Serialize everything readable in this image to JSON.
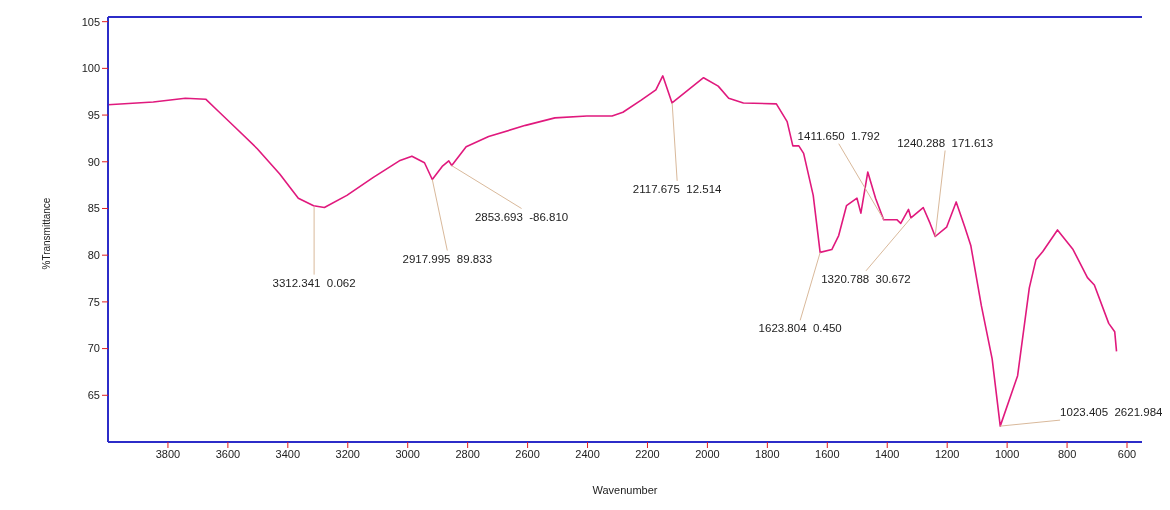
{
  "chart_data": {
    "type": "line",
    "xlabel": "Wavenumber",
    "ylabel": "%Transmittance",
    "xlim": [
      4000,
      550
    ],
    "xticks": [
      3800,
      3600,
      3400,
      3200,
      3000,
      2800,
      2600,
      2400,
      2200,
      2000,
      1800,
      1600,
      1400,
      1200,
      1000,
      800,
      600
    ],
    "ylim": [
      60,
      105.5
    ],
    "yticks": [
      65,
      70,
      75,
      80,
      85,
      90,
      95,
      100,
      105
    ],
    "marker": "none",
    "line_style": "solid",
    "series": [
      {
        "color": "#e0197d",
        "x": [
          4000,
          3849,
          3742,
          3674,
          3638,
          3576,
          3502,
          3427,
          3365,
          3314,
          3278,
          3203,
          3116,
          3028,
          2986,
          2944,
          2918,
          2885,
          2863,
          2853,
          2805,
          2730,
          2607,
          2509,
          2402,
          2318,
          2282,
          2221,
          2172,
          2149,
          2118,
          2013,
          1964,
          1929,
          1880,
          1770,
          1734,
          1715,
          1695,
          1679,
          1647,
          1624,
          1585,
          1562,
          1536,
          1501,
          1488,
          1465,
          1439,
          1412,
          1368,
          1355,
          1329,
          1321,
          1280,
          1257,
          1240,
          1202,
          1170,
          1141,
          1121,
          1086,
          1050,
          1023,
          965,
          926,
          904,
          881,
          832,
          780,
          732,
          709,
          661,
          641,
          635
        ],
        "values": [
          96.1,
          96.4,
          96.8,
          96.7,
          95.6,
          93.7,
          91.4,
          88.7,
          86.1,
          85.3,
          85.1,
          86.4,
          88.3,
          90.1,
          90.6,
          89.9,
          88.1,
          89.5,
          90.1,
          89.6,
          91.6,
          92.7,
          93.9,
          94.7,
          94.9,
          94.9,
          95.3,
          96.6,
          97.7,
          99.2,
          96.3,
          99.0,
          98.1,
          96.8,
          96.3,
          96.2,
          94.3,
          91.7,
          91.7,
          90.9,
          86.4,
          80.3,
          80.6,
          82.1,
          85.3,
          86.1,
          84.5,
          88.9,
          86.1,
          83.8,
          83.8,
          83.4,
          84.9,
          84.0,
          85.1,
          83.4,
          82.0,
          83.0,
          85.7,
          83.0,
          81.0,
          74.6,
          68.9,
          61.7,
          67.1,
          76.5,
          79.5,
          80.4,
          82.7,
          80.6,
          77.6,
          76.8,
          72.7,
          71.8,
          69.7
        ]
      }
    ],
    "annotations": [
      {
        "text": "3312.341  0.062",
        "x": 3312.341,
        "y": 85.2
      },
      {
        "text": "2917.995  89.833",
        "x": 2917.995,
        "y": 88.1
      },
      {
        "text": "2853.693  -86.810",
        "x": 2853.693,
        "y": 89.6
      },
      {
        "text": "2117.675  12.514",
        "x": 2117.675,
        "y": 96.3
      },
      {
        "text": "1623.804  0.450",
        "x": 1623.804,
        "y": 80.3
      },
      {
        "text": "1411.650  1.792",
        "x": 1411.65,
        "y": 83.8
      },
      {
        "text": "1320.788  30.672",
        "x": 1320.788,
        "y": 84.0
      },
      {
        "text": "1240.288  171.613",
        "x": 1240.288,
        "y": 82.0
      },
      {
        "text": "1023.405  2621.984",
        "x": 1023.405,
        "y": 61.7
      }
    ]
  }
}
